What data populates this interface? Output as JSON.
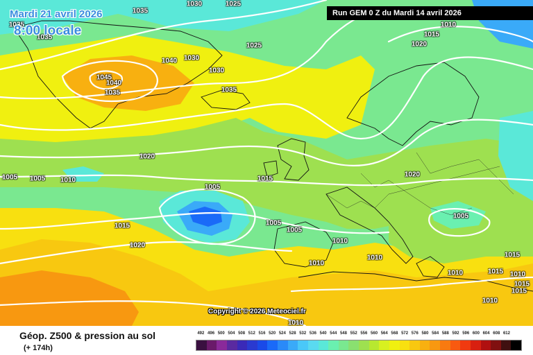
{
  "header": {
    "date_line": "Mardi 21 avril 2026",
    "time_line": "8:00 locale",
    "run_label": "Run GEM 0 Z du Mardi 14 avril 2026"
  },
  "footer": {
    "title": "Géop. Z500 & pression au sol",
    "lead_time": "(+ 174h)"
  },
  "copyright": "Copyright © 2026 Meteociel.fr",
  "isobar_labels": [
    "1035",
    "1035",
    "1035",
    "1030",
    "1045",
    "1040",
    "1035",
    "1040",
    "1030",
    "1030",
    "1025",
    "1035",
    "1025",
    "1010",
    "1015",
    "1020",
    "1020",
    "1005",
    "1005",
    "1010",
    "1005",
    "1015",
    "1020",
    "1005",
    "1005",
    "1010",
    "1015",
    "1020",
    "1010",
    "1010",
    "1005",
    "1010",
    "1015",
    "1015",
    "1010",
    "1015",
    "1015",
    "1010",
    "1010"
  ],
  "scale": {
    "ticks": [
      492,
      496,
      500,
      504,
      508,
      512,
      516,
      520,
      524,
      528,
      532,
      536,
      540,
      544,
      548,
      552,
      556,
      560,
      564,
      568,
      572,
      576,
      580,
      584,
      588,
      592,
      596,
      600,
      604,
      608,
      612
    ],
    "colors": [
      "#3a1040",
      "#6a1a6a",
      "#8a2a9a",
      "#5a2aa0",
      "#3a2ab8",
      "#2a3ad0",
      "#1a4ae8",
      "#1a6af8",
      "#2a8af8",
      "#3aaaf8",
      "#4ac8f8",
      "#5adaf0",
      "#5ae8d8",
      "#6af0b0",
      "#7ae890",
      "#8ae070",
      "#9ee050",
      "#b8e830",
      "#d8f020",
      "#f0f010",
      "#f8e010",
      "#f8c810",
      "#f8b010",
      "#f89810",
      "#f87a10",
      "#f85a10",
      "#f03a10",
      "#d82010",
      "#b01010",
      "#801010",
      "#401010",
      "#000000"
    ]
  },
  "map_colors": {
    "z540": "#5ae8d8",
    "z544": "#6af0b0",
    "z548": "#7ae890",
    "z556": "#9ee050",
    "z560": "#b8e830",
    "z564": "#d8f020",
    "z568": "#f0f010",
    "z572": "#f8e010",
    "z576": "#f8c810",
    "z580": "#f8b010",
    "z584": "#f89810",
    "z528": "#3aaaf8",
    "z520": "#1a6af8",
    "z512": "#2a3ad0"
  }
}
